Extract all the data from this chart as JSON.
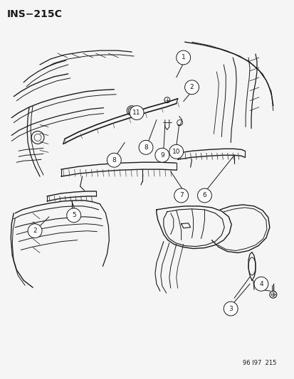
{
  "title": "INS−215C",
  "watermark": "96 I97  215",
  "background": "#f5f5f5",
  "fig_width": 4.14,
  "fig_height": 5.33,
  "dpi": 100
}
